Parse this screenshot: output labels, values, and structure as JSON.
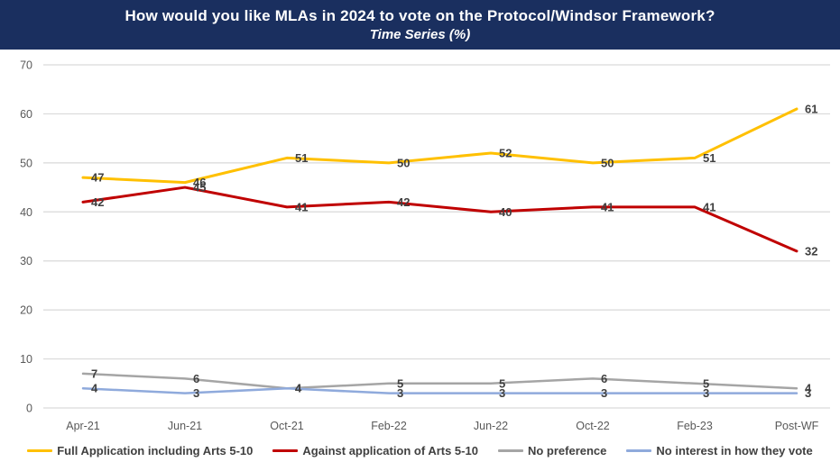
{
  "header": {
    "title": "How would you like MLAs in 2024 to vote on the Protocol/Windsor Framework?",
    "subtitle": "Time Series (%)",
    "background_color": "#1A2F5F",
    "text_color": "#FFFFFF"
  },
  "chart_data": {
    "type": "line",
    "title": "How would you like MLAs in 2024 to vote on the Protocol/Windsor Framework?",
    "subtitle": "Time Series (%)",
    "categories": [
      "Apr-21",
      "Jun-21",
      "Oct-21",
      "Feb-22",
      "Jun-22",
      "Oct-22",
      "Feb-23",
      "Post-WF"
    ],
    "series": [
      {
        "name": "Full Application including Arts 5-10",
        "color": "#FFC000",
        "values": [
          47,
          46,
          51,
          50,
          52,
          50,
          51,
          61
        ]
      },
      {
        "name": "Against application of Arts 5-10",
        "color": "#C00000",
        "values": [
          42,
          45,
          41,
          42,
          40,
          41,
          41,
          32
        ]
      },
      {
        "name": "No preference",
        "color": "#A5A5A5",
        "values": [
          7,
          6,
          4,
          5,
          5,
          6,
          5,
          4
        ]
      },
      {
        "name": "No interest in how they vote",
        "color": "#8FAADC",
        "values": [
          4,
          3,
          4,
          3,
          3,
          3,
          3,
          3
        ]
      }
    ],
    "yticks": [
      0,
      10,
      20,
      30,
      40,
      50,
      60,
      70
    ],
    "ylim": [
      0,
      70
    ],
    "xlabel": "",
    "ylabel": "",
    "grid": true,
    "legend_position": "bottom",
    "data_labels": true,
    "colors": {
      "gridline": "#D9D9D9",
      "axis_text": "#595959",
      "data_label_text": "#404040"
    }
  }
}
